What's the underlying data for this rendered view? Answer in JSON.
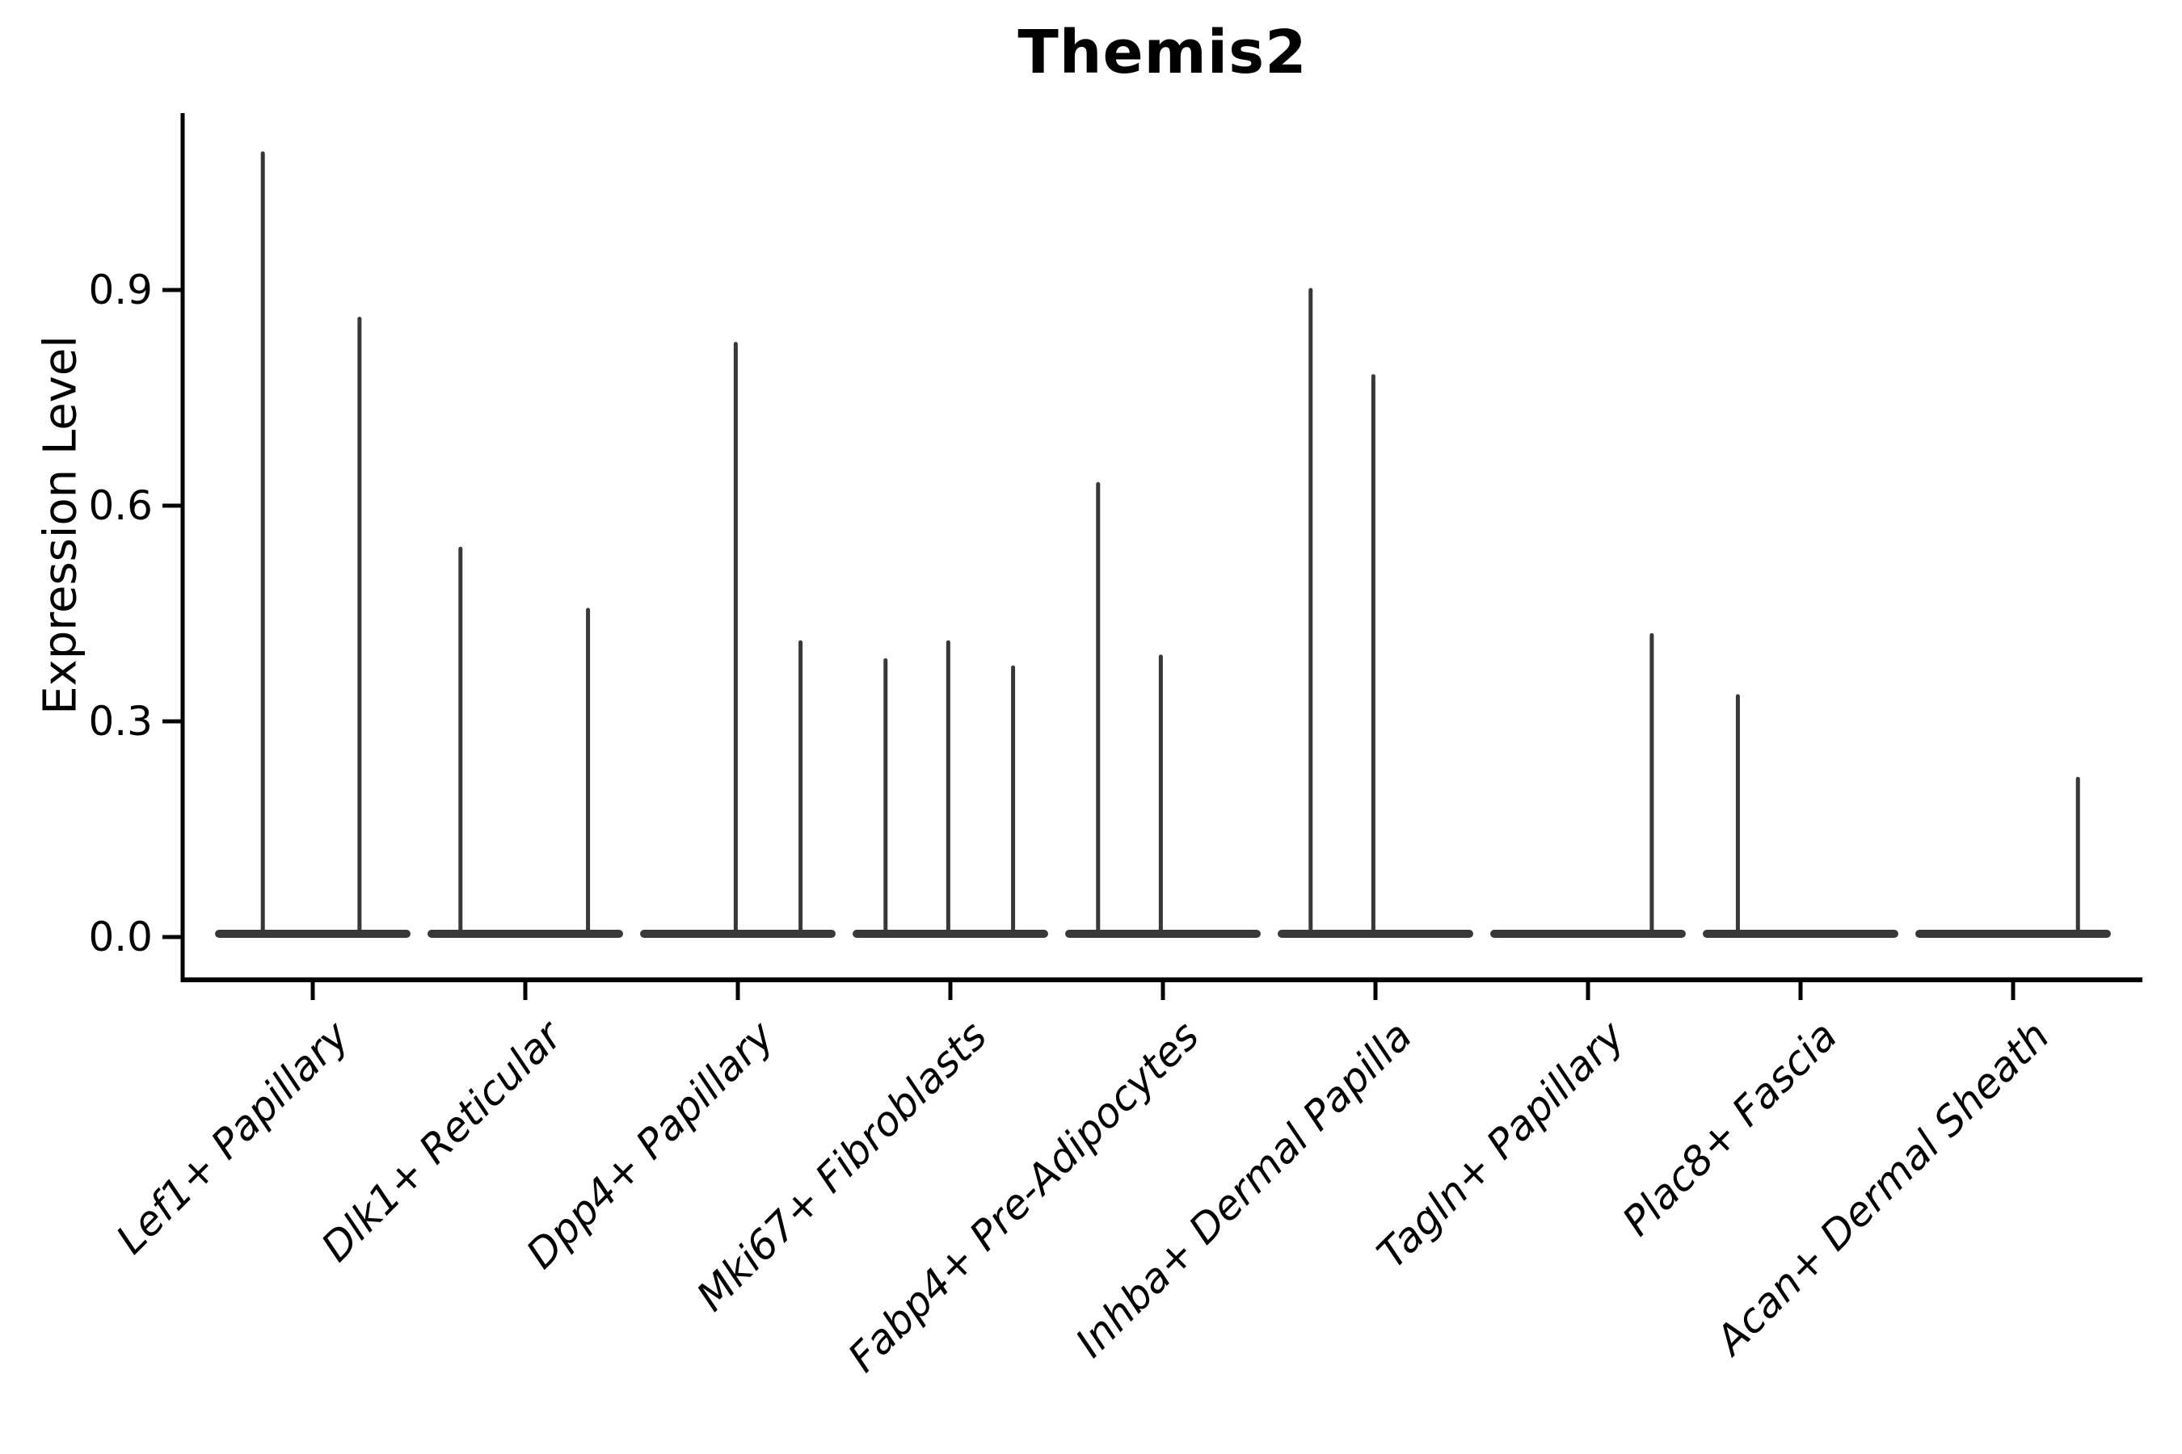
{
  "chart_data": {
    "type": "violin",
    "title": "Themis2",
    "ylabel": "Expression Level",
    "xlabel": "",
    "ylim": [
      -0.06,
      1.15
    ],
    "grid": false,
    "legend": "none",
    "y_ticks": [
      0.0,
      0.3,
      0.6,
      0.9
    ],
    "y_tick_labels": [
      "0.0",
      "0.3",
      "0.6",
      "0.9"
    ],
    "categories": [
      "Lef1+ Papillary",
      "Dlk1+ Reticular",
      "Dpp4+ Papillary",
      "Mki67+ Fibroblasts",
      "Fabp4+ Pre-Adipocytes",
      "Inhba+ Dermal Papilla",
      "Tagln+ Papillary",
      "Plac8+ Fascia",
      "Acan+ Dermal Sheath"
    ],
    "groups": [
      {
        "category": "Lef1+ Papillary",
        "violins": [
          {
            "offset": -0.235,
            "peak": 1.09
          },
          {
            "offset": 0.22,
            "peak": 0.86
          }
        ]
      },
      {
        "category": "Dlk1+ Reticular",
        "violins": [
          {
            "offset": -0.305,
            "peak": 0.54
          },
          {
            "offset": 0.295,
            "peak": 0.455
          }
        ]
      },
      {
        "category": "Dpp4+ Papillary",
        "violins": [
          {
            "offset": -0.01,
            "peak": 0.825
          },
          {
            "offset": 0.295,
            "peak": 0.41
          }
        ]
      },
      {
        "category": "Mki67+ Fibroblasts",
        "violins": [
          {
            "offset": -0.305,
            "peak": 0.385
          },
          {
            "offset": -0.01,
            "peak": 0.41
          },
          {
            "offset": 0.295,
            "peak": 0.375
          }
        ]
      },
      {
        "category": "Fabp4+ Pre-Adipocytes",
        "violins": [
          {
            "offset": -0.305,
            "peak": 0.63
          },
          {
            "offset": -0.01,
            "peak": 0.39
          }
        ]
      },
      {
        "category": "Inhba+ Dermal Papilla",
        "violins": [
          {
            "offset": -0.305,
            "peak": 0.9
          },
          {
            "offset": -0.01,
            "peak": 0.78
          }
        ]
      },
      {
        "category": "Tagln+ Papillary",
        "violins": [
          {
            "offset": 0.3,
            "peak": 0.42
          }
        ]
      },
      {
        "category": "Plac8+ Fascia",
        "violins": [
          {
            "offset": -0.295,
            "peak": 0.335
          }
        ]
      },
      {
        "category": "Acan+ Dermal Sheath",
        "violins": [
          {
            "offset": 0.305,
            "peak": 0.22
          }
        ]
      }
    ],
    "base_half_width_fraction": 0.46,
    "colors": {
      "violin": "#383838",
      "axis": "#000000",
      "text": "#000000",
      "background": "#ffffff"
    }
  }
}
